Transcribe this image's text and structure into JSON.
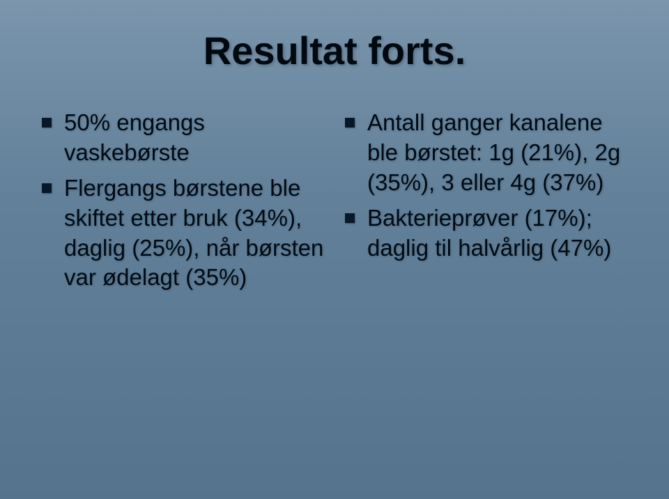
{
  "slide": {
    "title": "Resultat forts.",
    "title_color": "#000810",
    "title_fontsize": 56,
    "background_gradient": [
      "#7a95ac",
      "#628099",
      "#55738c"
    ],
    "bullet_color": "#081828",
    "bullet_size": 14,
    "text_color": "#000a14",
    "text_fontsize": 33,
    "left_column": {
      "items": [
        "50% engangs vaskebørste",
        "Flergangs børstene ble skiftet etter bruk (34%), daglig (25%), når børsten var ødelagt (35%)"
      ]
    },
    "right_column": {
      "items": [
        "Antall ganger kanalene ble børstet: 1g (21%), 2g (35%), 3 eller 4g (37%)",
        "Bakterieprøver (17%); daglig til halvårlig (47%)"
      ]
    }
  }
}
